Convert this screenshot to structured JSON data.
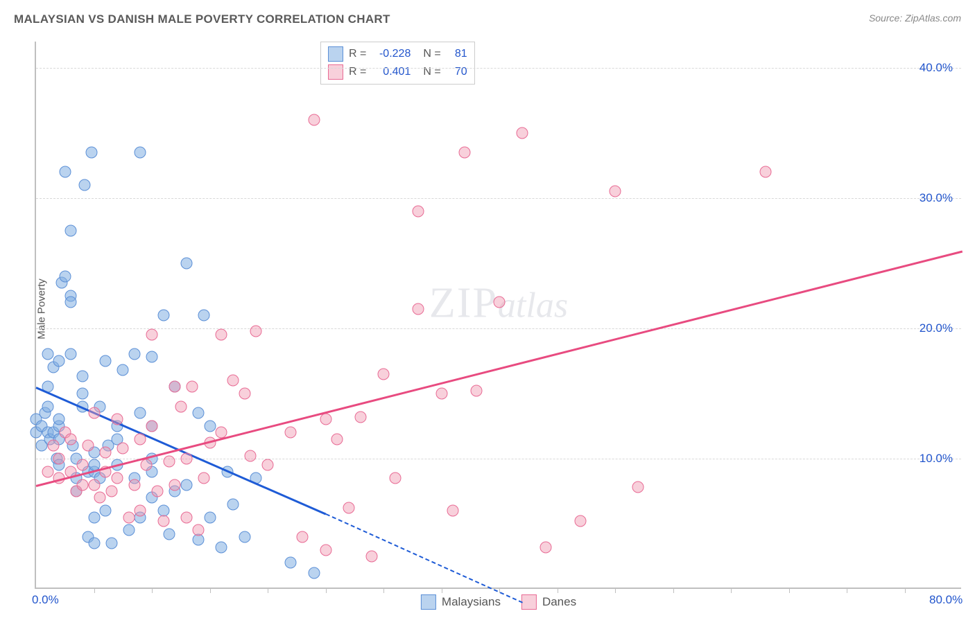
{
  "title": "MALAYSIAN VS DANISH MALE POVERTY CORRELATION CHART",
  "source_prefix": "Source: ",
  "source_name": "ZipAtlas.com",
  "watermark_a": "ZIP",
  "watermark_b": "atlas",
  "chart": {
    "type": "scatter",
    "ylabel": "Male Poverty",
    "xlim": [
      0,
      80
    ],
    "ylim": [
      0,
      42
    ],
    "x_ticks": [
      0,
      80
    ],
    "x_tick_labels": [
      "0.0%",
      "80.0%"
    ],
    "x_minor_ticks": [
      5,
      10,
      15,
      20,
      25,
      30,
      35,
      40,
      45,
      50,
      55,
      60,
      65,
      70,
      75
    ],
    "y_gridlines": [
      10,
      20,
      30,
      40
    ],
    "y_tick_labels": [
      "10.0%",
      "20.0%",
      "30.0%",
      "40.0%"
    ],
    "grid_color": "#d8d8d8",
    "axis_color": "#bfbfbf",
    "background_color": "#ffffff",
    "tick_label_color": "#2255cc",
    "series": [
      {
        "name": "Malaysians",
        "marker_fill": "rgba(130, 175, 225, 0.55)",
        "marker_stroke": "#5b8fd6",
        "marker_size": 17,
        "trend_color": "#1e5bd6",
        "trend_solid": {
          "x1": 0,
          "y1": 15.5,
          "x2": 25,
          "y2": 5.8
        },
        "trend_dash": {
          "x1": 25,
          "y1": 5.8,
          "x2": 42,
          "y2": -1.0
        },
        "R": "-0.228",
        "N": "81",
        "points": [
          [
            0,
            12
          ],
          [
            0,
            13
          ],
          [
            0.5,
            11
          ],
          [
            0.5,
            12.5
          ],
          [
            0.8,
            13.5
          ],
          [
            1,
            12
          ],
          [
            1,
            14
          ],
          [
            1,
            15.5
          ],
          [
            1,
            18
          ],
          [
            1.2,
            11.5
          ],
          [
            1.5,
            12
          ],
          [
            1.5,
            17
          ],
          [
            1.8,
            10
          ],
          [
            2,
            9.5
          ],
          [
            2,
            11.5
          ],
          [
            2,
            12.5
          ],
          [
            2,
            13
          ],
          [
            2,
            17.5
          ],
          [
            2.2,
            23.5
          ],
          [
            2.5,
            24
          ],
          [
            2.5,
            32
          ],
          [
            3,
            18
          ],
          [
            3,
            22.5
          ],
          [
            3,
            22
          ],
          [
            3,
            27.5
          ],
          [
            3.2,
            11
          ],
          [
            3.5,
            8.5
          ],
          [
            3.5,
            7.5
          ],
          [
            3.5,
            10
          ],
          [
            4,
            14
          ],
          [
            4,
            15
          ],
          [
            4,
            16.3
          ],
          [
            4.2,
            31
          ],
          [
            4.5,
            4
          ],
          [
            4.5,
            9
          ],
          [
            4.8,
            33.5
          ],
          [
            5,
            3.5
          ],
          [
            5,
            9
          ],
          [
            5,
            9.5
          ],
          [
            5,
            10.5
          ],
          [
            5,
            5.5
          ],
          [
            5.5,
            8.5
          ],
          [
            5.5,
            14
          ],
          [
            6,
            6
          ],
          [
            6,
            17.5
          ],
          [
            6.2,
            11
          ],
          [
            6.5,
            3.5
          ],
          [
            7,
            9.5
          ],
          [
            7,
            11.5
          ],
          [
            7,
            12.5
          ],
          [
            7.5,
            16.8
          ],
          [
            8,
            4.5
          ],
          [
            8.5,
            8.5
          ],
          [
            8.5,
            18
          ],
          [
            9,
            5.5
          ],
          [
            9,
            13.5
          ],
          [
            9,
            33.5
          ],
          [
            10,
            7
          ],
          [
            10,
            9
          ],
          [
            10,
            10
          ],
          [
            10,
            12.5
          ],
          [
            10,
            17.8
          ],
          [
            11,
            6
          ],
          [
            11,
            21
          ],
          [
            11.5,
            4.2
          ],
          [
            12,
            7.5
          ],
          [
            12,
            15.5
          ],
          [
            13,
            25
          ],
          [
            13,
            8
          ],
          [
            14,
            3.8
          ],
          [
            14,
            13.5
          ],
          [
            14.5,
            21
          ],
          [
            15,
            5.5
          ],
          [
            15,
            12.5
          ],
          [
            16,
            3.2
          ],
          [
            16.5,
            9
          ],
          [
            17,
            6.5
          ],
          [
            18,
            4
          ],
          [
            19,
            8.5
          ],
          [
            22,
            2
          ],
          [
            24,
            1.2
          ]
        ]
      },
      {
        "name": "Danes",
        "marker_fill": "rgba(240, 150, 175, 0.45)",
        "marker_stroke": "#e86a94",
        "marker_size": 17,
        "trend_color": "#e84b80",
        "trend_solid": {
          "x1": 0,
          "y1": 8.0,
          "x2": 80,
          "y2": 26.0
        },
        "R": "0.401",
        "N": "70",
        "points": [
          [
            1,
            9
          ],
          [
            1.5,
            11
          ],
          [
            2,
            8.5
          ],
          [
            2,
            10
          ],
          [
            2.5,
            12
          ],
          [
            3,
            9
          ],
          [
            3,
            11.5
          ],
          [
            3.5,
            7.5
          ],
          [
            4,
            8
          ],
          [
            4,
            9.5
          ],
          [
            4.5,
            11
          ],
          [
            5,
            8
          ],
          [
            5,
            13.5
          ],
          [
            5.5,
            7
          ],
          [
            6,
            9
          ],
          [
            6,
            10.5
          ],
          [
            6.5,
            7.5
          ],
          [
            7,
            8.5
          ],
          [
            7,
            13
          ],
          [
            7.5,
            10.8
          ],
          [
            8,
            5.5
          ],
          [
            8.5,
            8
          ],
          [
            9,
            6
          ],
          [
            9,
            11.5
          ],
          [
            9.5,
            9.5
          ],
          [
            10,
            12.5
          ],
          [
            10,
            19.5
          ],
          [
            10.5,
            7.5
          ],
          [
            11,
            5.2
          ],
          [
            11.5,
            9.8
          ],
          [
            12,
            8
          ],
          [
            12,
            15.5
          ],
          [
            12.5,
            14
          ],
          [
            13,
            5.5
          ],
          [
            13,
            10
          ],
          [
            13.5,
            15.5
          ],
          [
            14,
            4.5
          ],
          [
            14.5,
            8.5
          ],
          [
            15,
            11.2
          ],
          [
            16,
            12
          ],
          [
            16,
            19.5
          ],
          [
            17,
            16
          ],
          [
            18,
            15
          ],
          [
            18.5,
            10.2
          ],
          [
            19,
            19.8
          ],
          [
            20,
            9.5
          ],
          [
            22,
            12
          ],
          [
            23,
            4
          ],
          [
            24,
            36
          ],
          [
            25,
            3
          ],
          [
            25,
            13
          ],
          [
            26,
            11.5
          ],
          [
            27,
            6.2
          ],
          [
            28,
            13.2
          ],
          [
            29,
            2.5
          ],
          [
            30,
            16.5
          ],
          [
            31,
            8.5
          ],
          [
            33,
            29
          ],
          [
            33,
            21.5
          ],
          [
            35,
            15
          ],
          [
            36,
            6
          ],
          [
            37,
            33.5
          ],
          [
            38,
            15.2
          ],
          [
            40,
            22
          ],
          [
            42,
            35
          ],
          [
            44,
            3.2
          ],
          [
            47,
            5.2
          ],
          [
            50,
            30.5
          ],
          [
            52,
            7.8
          ],
          [
            63,
            32
          ]
        ]
      }
    ],
    "legend_box": {
      "r_label": "R = ",
      "n_label": "N = "
    },
    "bottom_legend": [
      "Malaysians",
      "Danes"
    ]
  }
}
